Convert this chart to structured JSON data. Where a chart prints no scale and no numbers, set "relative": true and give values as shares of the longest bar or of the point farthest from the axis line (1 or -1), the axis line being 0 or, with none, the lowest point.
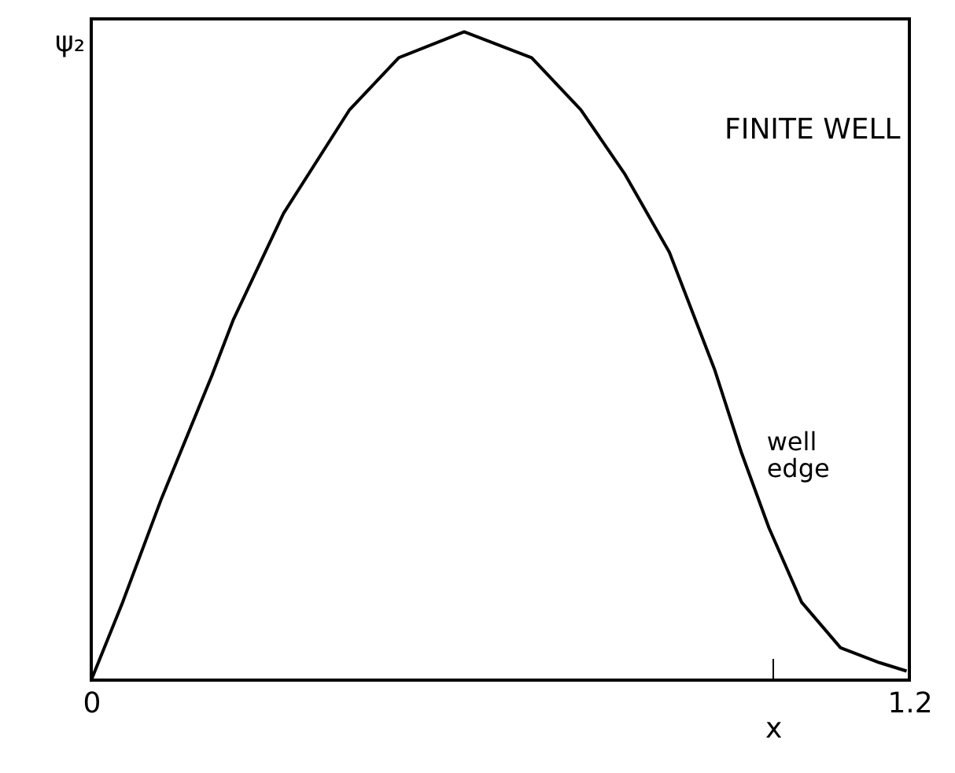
{
  "chart_data": {
    "type": "line",
    "title": "FINITE WELL",
    "xlabel": "x",
    "ylabel": "ψ₂",
    "relative": true,
    "x": [
      0,
      0.046,
      0.103,
      0.177,
      0.208,
      0.282,
      0.379,
      0.451,
      0.547,
      0.646,
      0.718,
      0.783,
      0.848,
      0.914,
      0.954,
      0.994,
      1.042,
      1.099,
      1.156,
      1.196
    ],
    "series": [
      {
        "color": "#000000",
        "values": [
          0,
          0.12,
          0.28,
          0.47,
          0.555,
          0.72,
          0.88,
          0.96,
          1.0,
          0.96,
          0.88,
          0.78,
          0.66,
          0.48,
          0.35,
          0.235,
          0.12,
          0.05,
          0.027,
          0.014
        ]
      }
    ],
    "xlim": [
      0,
      1.2
    ],
    "xticks": [
      0,
      {
        "value": 1.0,
        "label": null
      },
      1.2
    ],
    "annotations": [
      "well edge"
    ],
    "grid": false,
    "marker": "none",
    "line_style": "solid"
  }
}
